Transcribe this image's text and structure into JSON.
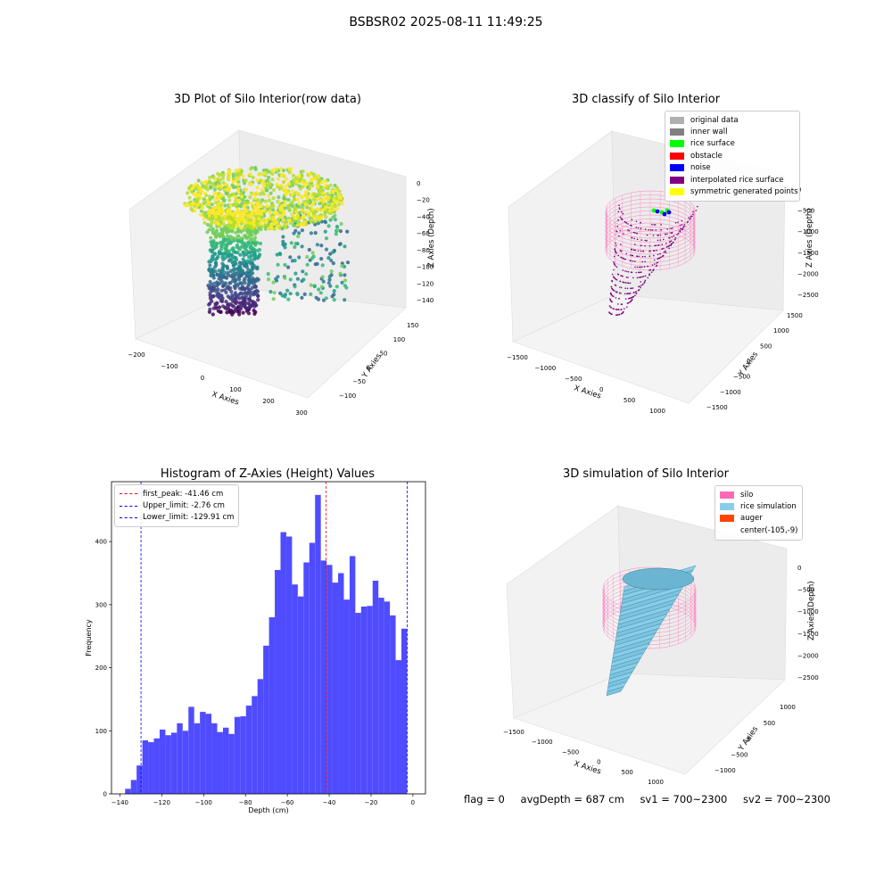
{
  "suptitle": "BSBSR02 2025-08-11 11:49:25",
  "footer": {
    "flag": "flag = 0",
    "avg_depth": "avgDepth = 687 cm",
    "sv1": "sv1 = 700~2300",
    "sv2": "sv2 = 700~2300"
  },
  "colors": {
    "histogram_bar": "#4f4cff",
    "first_peak_line": "#ff0000",
    "limit_line": "#0000ff",
    "silo": "#ff69b4",
    "rice_simulation": "#87ceeb",
    "auger": "#ff4500"
  },
  "chart_data": [
    {
      "type": "scatter",
      "title": "3D Plot of Silo Interior(row data)",
      "xlabel": "X Axies",
      "ylabel": "Y Axies",
      "zlabel": "Z Axies (Depth)",
      "x_ticks": [
        -200,
        -100,
        0,
        100,
        200,
        300
      ],
      "y_ticks": [
        -100,
        -50,
        0,
        50,
        100,
        150
      ],
      "z_ticks": [
        0,
        -20,
        -40,
        -60,
        -80,
        -100,
        -120,
        -140
      ],
      "colormap": "viridis"
    },
    {
      "type": "scatter",
      "title": "3D classify of Silo Interior",
      "xlabel": "X Axies",
      "ylabel": "Y Axies",
      "zlabel": "Z Axies (Depth)",
      "x_ticks": [
        -1500,
        -1000,
        -500,
        0,
        500,
        1000
      ],
      "y_ticks": [
        -1500,
        -1000,
        -500,
        0,
        500,
        1000,
        1500
      ],
      "z_ticks": [
        0,
        -500,
        -1000,
        -1500,
        -2000,
        -2500
      ],
      "legend": [
        {
          "label": "original data",
          "color": "#b0b0b0"
        },
        {
          "label": "inner wall",
          "color": "#808080"
        },
        {
          "label": "rice surface",
          "color": "#00ff00"
        },
        {
          "label": "obstacle",
          "color": "#ff0000"
        },
        {
          "label": "noise",
          "color": "#0000ff"
        },
        {
          "label": "interpolated rice surface",
          "color": "#800080"
        },
        {
          "label": "symmetric generated points",
          "color": "#ffff00"
        }
      ]
    },
    {
      "type": "bar",
      "title": "Histogram of Z-Axies (Height) Values",
      "xlabel": "Depth (cm)",
      "ylabel": "Frequency",
      "xlim": [
        -144,
        6
      ],
      "ylim": [
        0,
        495
      ],
      "x_ticks": [
        -140,
        -120,
        -100,
        -80,
        -60,
        -40,
        -20,
        0
      ],
      "y_ticks": [
        0,
        100,
        200,
        300,
        400
      ],
      "bin_start": -137.5,
      "bin_width": 2.75,
      "values": [
        8,
        22,
        45,
        85,
        82,
        88,
        102,
        93,
        97,
        112,
        100,
        138,
        112,
        130,
        127,
        112,
        98,
        105,
        95,
        122,
        123,
        140,
        155,
        182,
        235,
        280,
        355,
        415,
        408,
        332,
        313,
        367,
        398,
        474,
        370,
        363,
        335,
        350,
        308,
        377,
        287,
        297,
        298,
        338,
        311,
        305,
        283,
        212,
        262
      ],
      "vlines": [
        {
          "label": "first_peak: -41.46 cm",
          "x": -41.46,
          "color": "#ff0000"
        },
        {
          "label": "Upper_limit: -2.76 cm",
          "x": -2.76,
          "color": "#0000ff"
        },
        {
          "label": "Lower_limit: -129.91 cm",
          "x": -129.91,
          "color": "#0000ff"
        }
      ],
      "legend_placement": "upper-left"
    },
    {
      "type": "area",
      "title": "3D simulation of Silo Interior",
      "xlabel": "X Axies",
      "ylabel": "Y Axies",
      "zlabel": "Z Axies (Depth)",
      "x_ticks": [
        -1500,
        -1000,
        -500,
        0,
        500,
        1000
      ],
      "y_ticks": [
        -1000,
        -500,
        0,
        500,
        1000
      ],
      "z_ticks": [
        0,
        -500,
        -1000,
        -1500,
        -2000,
        -2500
      ],
      "legend": [
        {
          "label": "silo",
          "color": "#ff69b4"
        },
        {
          "label": "rice simulation",
          "color": "#87ceeb"
        },
        {
          "label": "auger",
          "color": "#ff4500"
        },
        {
          "label": "center(-105,-9)",
          "color": ""
        }
      ]
    }
  ]
}
